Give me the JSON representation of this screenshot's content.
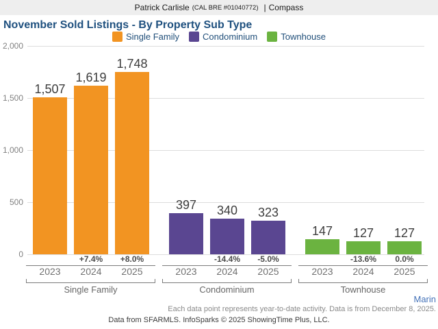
{
  "header": {
    "agent_name": "Patrick Carlisle",
    "license": "(CAL BRE #01040772)",
    "separator": "|",
    "brokerage": "Compass"
  },
  "chart_data": {
    "type": "bar",
    "title": "November Sold Listings - By Property Sub Type",
    "xlabel": "",
    "ylabel": "",
    "ylim": [
      0,
      2000
    ],
    "grid": "horizontal",
    "legend_position": "top",
    "yticks": [
      {
        "value": 2000,
        "label": "2,000"
      },
      {
        "value": 1500,
        "label": "1,500"
      },
      {
        "value": 1000,
        "label": "1,000"
      },
      {
        "value": 500,
        "label": "500"
      },
      {
        "value": 0,
        "label": "0"
      }
    ],
    "categories": [
      "2023",
      "2024",
      "2025"
    ],
    "groups": [
      {
        "name": "Single Family",
        "color": "#F29422",
        "values": [
          1507,
          1619,
          1748
        ],
        "value_labels": [
          "1,507",
          "1,619",
          "1,748"
        ],
        "pct_change": [
          "",
          "+7.4%",
          "+8.0%"
        ]
      },
      {
        "name": "Condominium",
        "color": "#5A4691",
        "values": [
          397,
          340,
          323
        ],
        "value_labels": [
          "397",
          "340",
          "323"
        ],
        "pct_change": [
          "",
          "-14.4%",
          "-5.0%"
        ]
      },
      {
        "name": "Townhouse",
        "color": "#6BB340",
        "values": [
          147,
          127,
          127
        ],
        "value_labels": [
          "147",
          "127",
          "127"
        ],
        "pct_change": [
          "",
          "-13.6%",
          "0.0%"
        ]
      }
    ]
  },
  "footer": {
    "region": "Marin",
    "region_color": "#4472B8",
    "note": "Each data point represents year-to-date activity. Data is from December 8, 2025.",
    "credits": "Data from SFARMLS. InfoSparks © 2025 ShowingTime Plus, LLC."
  }
}
